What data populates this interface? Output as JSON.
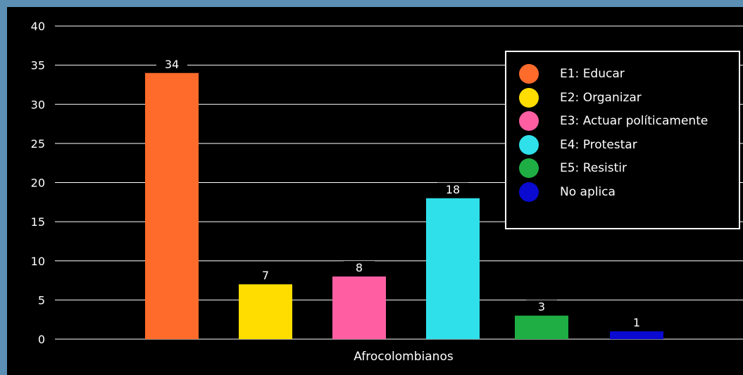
{
  "chart_data": {
    "type": "bar",
    "x_category": "Afrocolombianos",
    "categories": [
      "E1: Educar",
      "E2: Organizar",
      "E3: Actuar políticamente",
      "E4: Protestar",
      "E5: Resistir",
      "No aplica"
    ],
    "values": [
      34,
      7,
      8,
      18,
      3,
      1
    ],
    "value_labels": [
      "34",
      "7",
      "8",
      "18",
      "3",
      "1"
    ],
    "colors": [
      "#ff6b2b",
      "#ffdd00",
      "#ff5fa2",
      "#2fe0ea",
      "#1fae44",
      "#0a0ad0"
    ],
    "ylim": [
      0,
      40
    ],
    "yticks": [
      0,
      5,
      10,
      15,
      20,
      25,
      30,
      35,
      40
    ],
    "ytick_labels": [
      "0",
      "5",
      "10",
      "15",
      "20",
      "25",
      "30",
      "35",
      "40"
    ],
    "grid": true,
    "legend_position": "top-right",
    "background": "#000000"
  }
}
